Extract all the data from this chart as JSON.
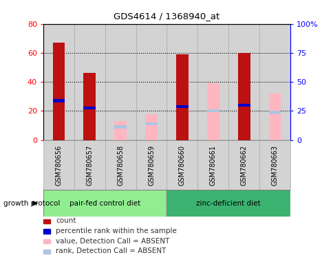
{
  "title": "GDS4614 / 1368940_at",
  "samples": [
    "GSM780656",
    "GSM780657",
    "GSM780658",
    "GSM780659",
    "GSM780660",
    "GSM780661",
    "GSM780662",
    "GSM780663"
  ],
  "count_values": [
    67,
    46,
    0,
    0,
    59,
    0,
    60,
    0
  ],
  "rank_values": [
    27,
    22,
    0,
    0,
    23,
    0,
    24,
    0
  ],
  "absent_value": [
    0,
    0,
    13,
    18,
    0,
    39,
    0,
    32
  ],
  "absent_rank": [
    0,
    0,
    9,
    11,
    0,
    20,
    0,
    19
  ],
  "ylim_left": [
    0,
    80
  ],
  "ylim_right": [
    0,
    100
  ],
  "yticks_left": [
    0,
    20,
    40,
    60,
    80
  ],
  "yticks_right": [
    0,
    25,
    50,
    75,
    100
  ],
  "ytick_labels_left": [
    "0",
    "20",
    "40",
    "60",
    "80"
  ],
  "ytick_labels_right": [
    "0",
    "25",
    "50",
    "75",
    "100%"
  ],
  "group1_label": "pair-fed control diet",
  "group2_label": "zinc-deficient diet",
  "group1_color": "#90EE90",
  "group2_color": "#3CB371",
  "protocol_label": "growth protocol",
  "bar_width": 0.4,
  "count_color": "#BB1111",
  "rank_color": "#0000CC",
  "absent_value_color": "#FFB6C1",
  "absent_rank_color": "#B0C4DE",
  "plot_bg": "#d3d3d3",
  "cell_edge_color": "#aaaaaa",
  "group1_samples": 4,
  "group2_samples": 4
}
